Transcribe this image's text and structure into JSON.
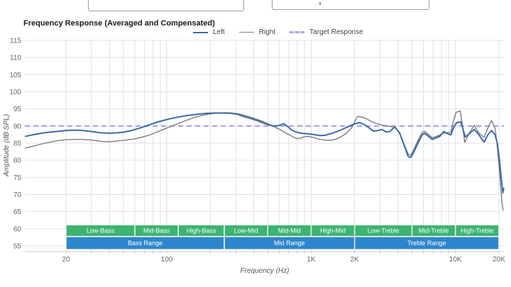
{
  "colors": {
    "left": "#3a6bab",
    "right": "#7d7d7d",
    "target": "#ada6ef",
    "grid": "#e2e2e2",
    "axis_line": "#c9c9c9",
    "tick_text": "#666666",
    "band_green": "#3db470",
    "band_blue": "#2e86ca",
    "band_text": "#ffffff"
  },
  "chart": {
    "title": "Frequency Response (Averaged and Compensated)"
  },
  "legend": {
    "items": [
      {
        "label": "Left",
        "style": "solid-blue"
      },
      {
        "label": "Right",
        "style": "solid-gray"
      },
      {
        "label": "Target Response",
        "style": "dashed-purple"
      }
    ]
  },
  "chart_data": {
    "type": "line",
    "title": "Frequency Response (Averaged and Compensated)",
    "xlabel": "Frequency (Hz)",
    "ylabel": "Amplitude (dB SPL)",
    "x_scale": "log",
    "x_range_hz": [
      10.5,
      21700
    ],
    "ylim": [
      55,
      115
    ],
    "grid": true,
    "legend_position": "top",
    "x_ticks": [
      {
        "f": 20,
        "label": "20"
      },
      {
        "f": 100,
        "label": "100"
      },
      {
        "f": 1000,
        "label": "1K"
      },
      {
        "f": 2000,
        "label": "2K"
      },
      {
        "f": 10000,
        "label": "10K"
      },
      {
        "f": 20000,
        "label": "20K"
      }
    ],
    "y_ticks": [
      115,
      110,
      105,
      100,
      95,
      90,
      85,
      80,
      75,
      70,
      65,
      60,
      55
    ],
    "target_response_db": 90,
    "series": [
      {
        "name": "Right",
        "points": [
          [
            10.5,
            83.6
          ],
          [
            12,
            84.2
          ],
          [
            14,
            84.9
          ],
          [
            16,
            85.4
          ],
          [
            18,
            85.8
          ],
          [
            20,
            86.0
          ],
          [
            23,
            86.1
          ],
          [
            26,
            86.1
          ],
          [
            30,
            85.9
          ],
          [
            35,
            85.5
          ],
          [
            40,
            85.4
          ],
          [
            45,
            85.6
          ],
          [
            50,
            85.8
          ],
          [
            57,
            86.1
          ],
          [
            65,
            86.6
          ],
          [
            75,
            87.3
          ],
          [
            85,
            88.2
          ],
          [
            100,
            89.4
          ],
          [
            115,
            90.4
          ],
          [
            135,
            91.6
          ],
          [
            160,
            92.7
          ],
          [
            190,
            93.4
          ],
          [
            220,
            93.8
          ],
          [
            250,
            93.9
          ],
          [
            280,
            93.8
          ],
          [
            310,
            93.6
          ],
          [
            340,
            93.2
          ],
          [
            380,
            92.6
          ],
          [
            420,
            92.0
          ],
          [
            460,
            91.4
          ],
          [
            500,
            90.7
          ],
          [
            540,
            90.0
          ],
          [
            580,
            89.4
          ],
          [
            620,
            88.8
          ],
          [
            660,
            88.1
          ],
          [
            700,
            87.5
          ],
          [
            750,
            86.8
          ],
          [
            800,
            86.3
          ],
          [
            850,
            86.5
          ],
          [
            900,
            86.9
          ],
          [
            950,
            87.0
          ],
          [
            1050,
            86.6
          ],
          [
            1150,
            86.1
          ],
          [
            1300,
            85.8
          ],
          [
            1450,
            86.0
          ],
          [
            1600,
            86.8
          ],
          [
            1750,
            87.8
          ],
          [
            1900,
            89.4
          ],
          [
            2000,
            91.2
          ],
          [
            2100,
            92.8
          ],
          [
            2250,
            92.6
          ],
          [
            2400,
            92.2
          ],
          [
            2600,
            91.4
          ],
          [
            2800,
            90.8
          ],
          [
            3100,
            90.3
          ],
          [
            3500,
            89.9
          ],
          [
            3800,
            89.7
          ],
          [
            4100,
            87.8
          ],
          [
            4400,
            84.8
          ],
          [
            4700,
            81.8
          ],
          [
            4900,
            81.5
          ],
          [
            5100,
            82.8
          ],
          [
            5500,
            85.8
          ],
          [
            5900,
            88.2
          ],
          [
            6100,
            88.5
          ],
          [
            6500,
            87.5
          ],
          [
            6900,
            86.6
          ],
          [
            7300,
            86.9
          ],
          [
            7800,
            87.4
          ],
          [
            8300,
            88.0
          ],
          [
            8800,
            88.0
          ],
          [
            9300,
            88.2
          ],
          [
            9700,
            91.5
          ],
          [
            10100,
            94.0
          ],
          [
            10800,
            94.4
          ],
          [
            11200,
            90.0
          ],
          [
            11600,
            85.2
          ],
          [
            12500,
            88.0
          ],
          [
            13500,
            90.2
          ],
          [
            14500,
            88.0
          ],
          [
            15800,
            86.7
          ],
          [
            16800,
            89.5
          ],
          [
            17800,
            91.6
          ],
          [
            18800,
            89.5
          ],
          [
            19400,
            85.0
          ],
          [
            20000,
            79.0
          ],
          [
            20600,
            72.0
          ],
          [
            21100,
            67.0
          ],
          [
            21400,
            65.5
          ]
        ]
      },
      {
        "name": "Left",
        "points": [
          [
            10.5,
            87.0
          ],
          [
            12,
            87.5
          ],
          [
            14,
            88.0
          ],
          [
            16,
            88.3
          ],
          [
            18,
            88.5
          ],
          [
            20,
            88.7
          ],
          [
            23,
            88.8
          ],
          [
            26,
            88.7
          ],
          [
            30,
            88.4
          ],
          [
            35,
            88.0
          ],
          [
            40,
            87.9
          ],
          [
            45,
            88.0
          ],
          [
            50,
            88.2
          ],
          [
            57,
            88.7
          ],
          [
            65,
            89.4
          ],
          [
            75,
            90.3
          ],
          [
            85,
            91.1
          ],
          [
            100,
            91.9
          ],
          [
            115,
            92.5
          ],
          [
            135,
            93.0
          ],
          [
            160,
            93.4
          ],
          [
            190,
            93.7
          ],
          [
            220,
            93.8
          ],
          [
            250,
            93.8
          ],
          [
            280,
            93.7
          ],
          [
            310,
            93.4
          ],
          [
            340,
            92.8
          ],
          [
            380,
            92.2
          ],
          [
            420,
            91.6
          ],
          [
            460,
            91.0
          ],
          [
            500,
            90.4
          ],
          [
            540,
            90.1
          ],
          [
            580,
            90.0
          ],
          [
            620,
            90.4
          ],
          [
            650,
            90.6
          ],
          [
            690,
            89.8
          ],
          [
            730,
            88.9
          ],
          [
            780,
            88.3
          ],
          [
            850,
            87.9
          ],
          [
            950,
            87.7
          ],
          [
            1050,
            87.5
          ],
          [
            1150,
            87.2
          ],
          [
            1250,
            87.3
          ],
          [
            1400,
            87.9
          ],
          [
            1600,
            88.8
          ],
          [
            1800,
            89.8
          ],
          [
            2000,
            90.6
          ],
          [
            2150,
            91.0
          ],
          [
            2300,
            90.6
          ],
          [
            2500,
            89.6
          ],
          [
            2700,
            88.5
          ],
          [
            2900,
            88.7
          ],
          [
            3100,
            89.0
          ],
          [
            3300,
            88.3
          ],
          [
            3500,
            88.4
          ],
          [
            3800,
            89.7
          ],
          [
            4100,
            88.0
          ],
          [
            4400,
            84.5
          ],
          [
            4700,
            81.2
          ],
          [
            4900,
            80.8
          ],
          [
            5100,
            82.0
          ],
          [
            5500,
            85.0
          ],
          [
            5900,
            87.5
          ],
          [
            6100,
            87.9
          ],
          [
            6500,
            87.0
          ],
          [
            6900,
            86.1
          ],
          [
            7300,
            86.5
          ],
          [
            7800,
            87.0
          ],
          [
            8300,
            88.4
          ],
          [
            8800,
            87.8
          ],
          [
            9300,
            87.4
          ],
          [
            9700,
            89.5
          ],
          [
            10200,
            91.0
          ],
          [
            10900,
            91.2
          ],
          [
            11300,
            89.0
          ],
          [
            11700,
            86.8
          ],
          [
            12500,
            87.8
          ],
          [
            13500,
            89.0
          ],
          [
            14500,
            87.5
          ],
          [
            15800,
            85.3
          ],
          [
            16800,
            87.5
          ],
          [
            17800,
            88.7
          ],
          [
            18800,
            87.5
          ],
          [
            19500,
            85.0
          ],
          [
            20200,
            80.0
          ],
          [
            20800,
            74.5
          ],
          [
            21300,
            70.5
          ],
          [
            21600,
            71.8
          ]
        ]
      }
    ],
    "bands": {
      "subranges": [
        {
          "label": "Low-Bass",
          "from": 20,
          "to": 60
        },
        {
          "label": "Mid-Bass",
          "from": 60,
          "to": 120
        },
        {
          "label": "High-Bass",
          "from": 120,
          "to": 250
        },
        {
          "label": "Low-Mid",
          "from": 250,
          "to": 500
        },
        {
          "label": "Mid-Mid",
          "from": 500,
          "to": 1000
        },
        {
          "label": "High-Mid",
          "from": 1000,
          "to": 2000
        },
        {
          "label": "Low-Treble",
          "from": 2000,
          "to": 5000
        },
        {
          "label": "Mid-Treble",
          "from": 5000,
          "to": 10000
        },
        {
          "label": "High-Treble",
          "from": 10000,
          "to": 20000
        }
      ],
      "ranges": [
        {
          "label": "Bass Range",
          "from": 20,
          "to": 250
        },
        {
          "label": "Mid Range",
          "from": 250,
          "to": 2000
        },
        {
          "label": "Treble Range",
          "from": 2000,
          "to": 20000
        }
      ]
    }
  }
}
